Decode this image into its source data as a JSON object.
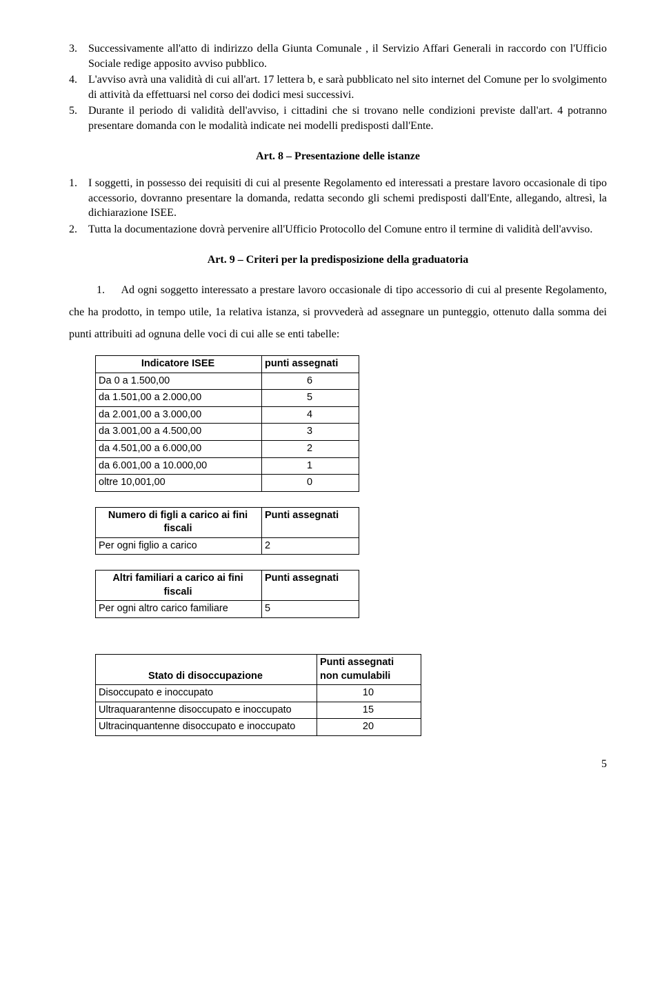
{
  "top_list": [
    {
      "num": "3.",
      "text": "Successivamente all'atto di indirizzo della Giunta Comunale , il Servizio Affari Generali  in raccordo con l'Ufficio Sociale redige apposito avviso pubblico."
    },
    {
      "num": "4.",
      "text": "L'avviso avrà una validità di cui all'art. 17 lettera b, e  sarà pubblicato nel sito internet del Comune  per lo svolgimento di attività da effettuarsi nel corso dei dodici mesi successivi."
    },
    {
      "num": "5.",
      "text": "Durante il periodo di validità dell'avviso, i cittadini che si trovano nelle condizioni previste dall'art. 4 potranno presentare domanda con le modalità  indicate nei modelli predisposti dall'Ente."
    }
  ],
  "art8": {
    "title": "Art. 8 – Presentazione delle istanze",
    "items": [
      {
        "num": "1.",
        "text": "I soggetti, in possesso dei requisiti di cui al presente Regolamento ed interessati a prestare lavoro occasionale di tipo accessorio, dovranno presentare la domanda, redatta secondo gli schemi predisposti dall'Ente, allegando, altresì, la dichiarazione ISEE."
      },
      {
        "num": "2.",
        "text": "Tutta la documentazione dovrà pervenire all'Ufficio Protocollo del Comune entro il termine di validità dell'avviso."
      }
    ]
  },
  "art9": {
    "title": "Art. 9 – Criteri per la predisposizione della graduatoria",
    "intro_num": "1.",
    "intro": "Ad ogni soggetto interessato a prestare lavoro occasionale di tipo accessorio di cui al presente Regolamento, che ha prodotto, in tempo utile, 1a relativa istanza, si provvederà ad assegnare un punteggio, ottenuto dalla somma dei punti attribuiti ad ognuna delle voci di cui alle se enti tabelle:"
  },
  "table_isee": {
    "h1": "Indicatore ISEE",
    "h2": "punti assegnati",
    "rows": [
      [
        "Da 0 a  1.500,00",
        "6"
      ],
      [
        "da 1.501,00 a 2.000,00",
        "5"
      ],
      [
        "da 2.001,00 a 3.000,00",
        "4"
      ],
      [
        "da 3.001,00 a 4.500,00",
        "3"
      ],
      [
        "da 4.501,00 a 6.000,00",
        "2"
      ],
      [
        "da  6.001,00 a 10.000,00",
        "1"
      ],
      [
        "oltre 10,001,00",
        "0"
      ]
    ]
  },
  "table_figli": {
    "h1": "Numero di figli a carico ai fini fiscali",
    "h2": "Punti assegnati",
    "rows": [
      [
        "Per ogni figlio a carico",
        "2"
      ]
    ]
  },
  "table_altri": {
    "h1": "Altri familiari a carico ai fini fiscali",
    "h2": "Punti assegnati",
    "rows": [
      [
        "Per ogni altro carico familiare",
        "5"
      ]
    ]
  },
  "table_disocc": {
    "h1": "Stato di disoccupazione",
    "h2a": "Punti assegnati",
    "h2b": "non cumulabili",
    "rows": [
      [
        "Disoccupato e inoccupato",
        "10"
      ],
      [
        "Ultraquarantenne disoccupato e inoccupato",
        "15"
      ],
      [
        "Ultracinquantenne disoccupato e inoccupato",
        "20"
      ]
    ]
  },
  "page_number": "5"
}
